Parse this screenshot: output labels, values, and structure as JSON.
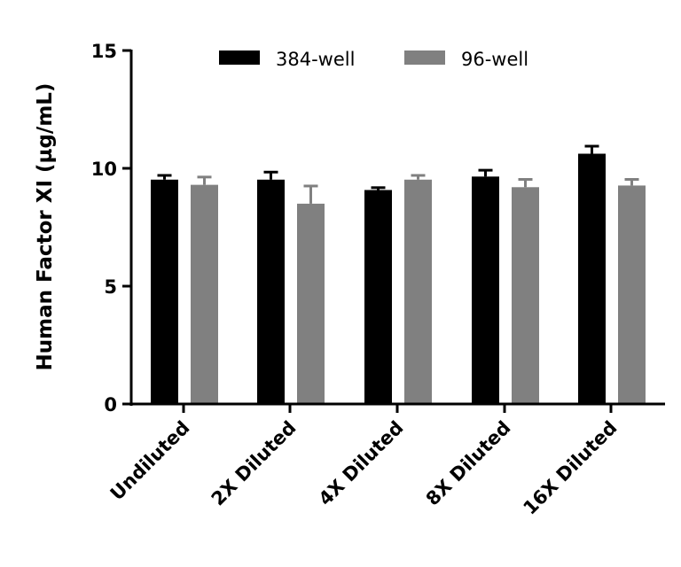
{
  "chart_data": {
    "type": "bar",
    "title": "",
    "xlabel": "",
    "ylabel": "Human Factor XI (µg/mL)",
    "ylim": [
      0,
      15
    ],
    "yticks": [
      0,
      5,
      10,
      15
    ],
    "grid": false,
    "legend_position": "top",
    "categories": [
      "Undiluted",
      "2X Diluted",
      "4X Diluted",
      "8X Diluted",
      "16X Diluted"
    ],
    "series": [
      {
        "name": "384-well",
        "color": "#000000",
        "values": [
          9.52,
          9.52,
          9.08,
          9.65,
          10.62
        ],
        "error": [
          0.18,
          0.32,
          0.1,
          0.27,
          0.32
        ]
      },
      {
        "name": "96-well",
        "color": "#808080",
        "values": [
          9.3,
          8.5,
          9.52,
          9.2,
          9.27
        ],
        "error": [
          0.33,
          0.75,
          0.18,
          0.33,
          0.26
        ]
      }
    ]
  }
}
